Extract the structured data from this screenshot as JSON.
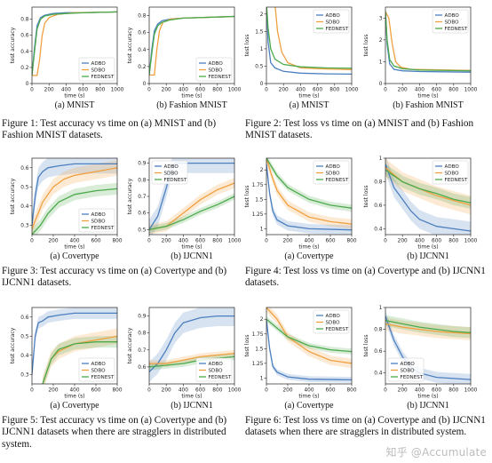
{
  "colors": {
    "ADBO": "#4c7fbf",
    "SDBO": "#f0a040",
    "FEDNEST": "#4caa4c"
  },
  "captions": [
    "Figure 1:  Test accuracy vs time on (a) MNIST and (b) Fashion MNIST datasets.",
    "Figure 2:  Test loss vs time on (a) MNIST and (b) Fashion MNIST datasets.",
    "Figure 3:  Test accuracy vs time on (a) Covertype and (b) IJCNN1 datasets.",
    "Figure 4:  Test loss vs time on (a) Covertype and (b) IJCNN1 datasets.",
    "Figure 5:  Test accuracy vs time on (a) Covertype and (b) IJCNN1 datasets when there are stragglers in distributed system.",
    "Figure 6:  Test loss vs time on (a) Covertype and (b) IJCNN1 datasets when there are stragglers in distributed system."
  ],
  "watermark": "知乎 @Accumulate",
  "chart_data": [
    {
      "type": "line",
      "subtitle": "(a)  MNIST",
      "xlabel": "time (s)",
      "ylabel": "test accuracy",
      "xlim": [
        0,
        1000
      ],
      "ylim": [
        0,
        0.95
      ],
      "xticks": [
        0,
        200,
        400,
        600,
        800,
        1000
      ],
      "yticks": [
        0.0,
        0.2,
        0.4,
        0.6,
        0.8
      ],
      "legend": "bottom-right",
      "series": [
        {
          "name": "ADBO",
          "x": [
            0,
            30,
            60,
            100,
            150,
            250,
            400,
            600,
            1000
          ],
          "y": [
            0.1,
            0.45,
            0.72,
            0.82,
            0.85,
            0.87,
            0.88,
            0.88,
            0.89
          ]
        },
        {
          "name": "SDBO",
          "x": [
            0,
            60,
            90,
            120,
            150,
            200,
            300,
            500,
            1000
          ],
          "y": [
            0.1,
            0.1,
            0.3,
            0.6,
            0.75,
            0.82,
            0.86,
            0.88,
            0.89
          ]
        },
        {
          "name": "FEDNEST",
          "x": [
            0,
            30,
            60,
            100,
            150,
            250,
            400,
            600,
            1000
          ],
          "y": [
            0.1,
            0.4,
            0.68,
            0.8,
            0.84,
            0.86,
            0.87,
            0.88,
            0.89
          ]
        }
      ]
    },
    {
      "type": "line",
      "subtitle": "(b)  Fashion MNIST",
      "xlabel": "time (s)",
      "ylabel": "test accuracy",
      "xlim": [
        0,
        1000
      ],
      "ylim": [
        0,
        0.9
      ],
      "xticks": [
        0,
        200,
        400,
        600,
        800,
        1000
      ],
      "yticks": [
        0.0,
        0.2,
        0.4,
        0.6,
        0.8
      ],
      "legend": "bottom-right",
      "series": [
        {
          "name": "ADBO",
          "x": [
            0,
            30,
            60,
            100,
            150,
            250,
            400,
            1000
          ],
          "y": [
            0.1,
            0.4,
            0.62,
            0.7,
            0.74,
            0.76,
            0.77,
            0.79
          ]
        },
        {
          "name": "SDBO",
          "x": [
            0,
            60,
            90,
            120,
            160,
            250,
            400,
            1000
          ],
          "y": [
            0.1,
            0.1,
            0.4,
            0.62,
            0.72,
            0.76,
            0.77,
            0.79
          ]
        },
        {
          "name": "FEDNEST",
          "x": [
            0,
            30,
            60,
            100,
            150,
            250,
            400,
            1000
          ],
          "y": [
            0.1,
            0.35,
            0.58,
            0.68,
            0.72,
            0.75,
            0.77,
            0.79
          ]
        }
      ]
    },
    {
      "type": "line",
      "subtitle": "(a)  MNIST",
      "xlabel": "time (s)",
      "ylabel": "test loss",
      "xlim": [
        0,
        1000
      ],
      "ylim": [
        0,
        2.2
      ],
      "xticks": [
        0,
        200,
        400,
        600,
        800,
        1000
      ],
      "yticks": [
        0.0,
        0.5,
        1.0,
        1.5,
        2.0
      ],
      "legend": "top-right",
      "series": [
        {
          "name": "ADBO",
          "x": [
            0,
            20,
            50,
            100,
            200,
            400,
            700,
            1000
          ],
          "y": [
            2.3,
            1.2,
            0.6,
            0.45,
            0.35,
            0.3,
            0.28,
            0.27
          ]
        },
        {
          "name": "SDBO",
          "x": [
            0,
            100,
            130,
            180,
            250,
            400,
            700,
            1000
          ],
          "y": [
            2.3,
            2.3,
            1.5,
            0.9,
            0.6,
            0.45,
            0.42,
            0.4
          ]
        },
        {
          "name": "FEDNEST",
          "x": [
            0,
            20,
            50,
            100,
            200,
            400,
            700,
            1000
          ],
          "y": [
            2.3,
            1.6,
            1.0,
            0.7,
            0.55,
            0.48,
            0.45,
            0.44
          ]
        }
      ]
    },
    {
      "type": "line",
      "subtitle": "(b)  Fashion MNIST",
      "xlabel": "time (s)",
      "ylabel": "test loss",
      "xlim": [
        0,
        1000
      ],
      "ylim": [
        0,
        3.5
      ],
      "xticks": [
        0,
        200,
        400,
        600,
        800,
        1000
      ],
      "yticks": [
        0,
        1,
        2,
        3
      ],
      "legend": "top-right",
      "series": [
        {
          "name": "ADBO",
          "x": [
            0,
            20,
            50,
            100,
            200,
            400,
            1000
          ],
          "y": [
            3.3,
            1.8,
            0.9,
            0.65,
            0.58,
            0.55,
            0.52
          ]
        },
        {
          "name": "SDBO",
          "x": [
            0,
            40,
            80,
            120,
            180,
            300,
            1000
          ],
          "y": [
            3.3,
            3.0,
            1.8,
            1.0,
            0.75,
            0.65,
            0.6
          ]
        },
        {
          "name": "FEDNEST",
          "x": [
            0,
            20,
            50,
            100,
            200,
            400,
            1000
          ],
          "y": [
            3.3,
            2.0,
            1.1,
            0.8,
            0.68,
            0.62,
            0.58
          ]
        }
      ]
    },
    {
      "type": "line",
      "subtitle": "(a)  Covertype",
      "xlabel": "time (s)",
      "ylabel": "test accuracy",
      "xlim": [
        0,
        800
      ],
      "ylim": [
        0.25,
        0.65
      ],
      "xticks": [
        0,
        200,
        400,
        600,
        800
      ],
      "yticks": [
        0.3,
        0.4,
        0.5,
        0.6
      ],
      "legend": "bottom-right",
      "series": [
        {
          "name": "ADBO",
          "x": [
            0,
            30,
            60,
            100,
            150,
            250,
            400,
            800
          ],
          "y": [
            0.3,
            0.45,
            0.55,
            0.58,
            0.6,
            0.61,
            0.62,
            0.62
          ],
          "spread": 0.05
        },
        {
          "name": "SDBO",
          "x": [
            0,
            50,
            100,
            200,
            300,
            400,
            600,
            800
          ],
          "y": [
            0.28,
            0.35,
            0.42,
            0.5,
            0.54,
            0.56,
            0.58,
            0.6
          ],
          "spread": 0.04
        },
        {
          "name": "FEDNEST",
          "x": [
            0,
            80,
            150,
            250,
            400,
            600,
            800
          ],
          "y": [
            0.25,
            0.3,
            0.36,
            0.42,
            0.46,
            0.48,
            0.49
          ],
          "spread": 0.03
        }
      ]
    },
    {
      "type": "line",
      "subtitle": "(b)  IJCNN1",
      "xlabel": "time (s)",
      "ylabel": "test accuracy",
      "xlim": [
        0,
        1000
      ],
      "ylim": [
        0.47,
        0.93
      ],
      "xticks": [
        0,
        200,
        400,
        600,
        800,
        1000
      ],
      "yticks": [
        0.5,
        0.6,
        0.7,
        0.8,
        0.9
      ],
      "legend": "top-left",
      "series": [
        {
          "name": "ADBO",
          "x": [
            0,
            100,
            200,
            250,
            300,
            400,
            1000
          ],
          "y": [
            0.5,
            0.58,
            0.75,
            0.85,
            0.9,
            0.9,
            0.9
          ],
          "spread": 0.06
        },
        {
          "name": "SDBO",
          "x": [
            0,
            200,
            400,
            600,
            800,
            1000
          ],
          "y": [
            0.5,
            0.52,
            0.6,
            0.68,
            0.74,
            0.78
          ],
          "spread": 0.03
        },
        {
          "name": "FEDNEST",
          "x": [
            0,
            200,
            400,
            600,
            800,
            1000
          ],
          "y": [
            0.5,
            0.52,
            0.56,
            0.61,
            0.65,
            0.7
          ],
          "spread": 0.02
        }
      ]
    },
    {
      "type": "line",
      "subtitle": "(a)  Covertype",
      "xlabel": "time (s)",
      "ylabel": "test loss",
      "xlim": [
        0,
        800
      ],
      "ylim": [
        0.9,
        2.2
      ],
      "xticks": [
        0,
        200,
        400,
        600,
        800
      ],
      "yticks": [
        1.0,
        1.25,
        1.5,
        1.75,
        2.0
      ],
      "legend": "top-right",
      "series": [
        {
          "name": "ADBO",
          "x": [
            0,
            30,
            60,
            100,
            200,
            400,
            800
          ],
          "y": [
            2.1,
            1.6,
            1.3,
            1.15,
            1.05,
            1.0,
            0.98
          ],
          "spread": 0.08
        },
        {
          "name": "SDBO",
          "x": [
            0,
            50,
            100,
            200,
            400,
            600,
            800
          ],
          "y": [
            2.2,
            1.9,
            1.65,
            1.4,
            1.2,
            1.12,
            1.08
          ],
          "spread": 0.08
        },
        {
          "name": "FEDNEST",
          "x": [
            0,
            100,
            200,
            400,
            600,
            800
          ],
          "y": [
            2.2,
            1.9,
            1.7,
            1.5,
            1.4,
            1.35
          ],
          "spread": 0.06
        }
      ]
    },
    {
      "type": "line",
      "subtitle": "(b)  IJCNN1",
      "xlabel": "time (s)",
      "ylabel": "test loss",
      "xlim": [
        0,
        1000
      ],
      "ylim": [
        0.35,
        1.0
      ],
      "xticks": [
        0,
        200,
        400,
        600,
        800,
        1000
      ],
      "yticks": [
        0.4,
        0.6,
        0.8,
        1.0
      ],
      "legend": "top-right",
      "series": [
        {
          "name": "ADBO",
          "x": [
            0,
            100,
            200,
            300,
            400,
            600,
            800,
            1000
          ],
          "y": [
            0.95,
            0.75,
            0.65,
            0.55,
            0.48,
            0.42,
            0.4,
            0.38
          ],
          "spread": 0.08
        },
        {
          "name": "SDBO",
          "x": [
            0,
            200,
            400,
            600,
            800,
            1000
          ],
          "y": [
            0.92,
            0.8,
            0.74,
            0.68,
            0.64,
            0.6
          ],
          "spread": 0.08
        },
        {
          "name": "FEDNEST",
          "x": [
            0,
            200,
            400,
            600,
            800,
            1000
          ],
          "y": [
            0.9,
            0.8,
            0.74,
            0.7,
            0.65,
            0.62
          ],
          "spread": 0.05
        }
      ]
    },
    {
      "type": "line",
      "subtitle": "(a)  Covertype",
      "xlabel": "time (s)",
      "ylabel": "test accuracy",
      "xlim": [
        0,
        800
      ],
      "ylim": [
        0.25,
        0.65
      ],
      "xticks": [
        0,
        200,
        400,
        600,
        800
      ],
      "yticks": [
        0.3,
        0.4,
        0.5,
        0.6
      ],
      "legend": "bottom-right",
      "series": [
        {
          "name": "ADBO",
          "x": [
            0,
            30,
            60,
            100,
            150,
            250,
            400,
            800
          ],
          "y": [
            0.3,
            0.5,
            0.57,
            0.58,
            0.6,
            0.61,
            0.62,
            0.62
          ],
          "spread": 0.03
        },
        {
          "name": "SDBO",
          "x": [
            100,
            180,
            250,
            400,
            600,
            800
          ],
          "y": [
            0.25,
            0.38,
            0.42,
            0.46,
            0.48,
            0.5
          ],
          "spread": 0.04
        },
        {
          "name": "FEDNEST",
          "x": [
            100,
            180,
            250,
            400,
            600,
            800
          ],
          "y": [
            0.25,
            0.38,
            0.43,
            0.46,
            0.47,
            0.47
          ],
          "spread": 0.03
        }
      ]
    },
    {
      "type": "line",
      "subtitle": "(b)  IJCNN1",
      "xlabel": "time (s)",
      "ylabel": "test accuracy",
      "xlim": [
        0,
        1000
      ],
      "ylim": [
        0.5,
        0.95
      ],
      "xticks": [
        0,
        200,
        400,
        600,
        800,
        1000
      ],
      "yticks": [
        0.6,
        0.7,
        0.8,
        0.9
      ],
      "legend": "bottom-right",
      "series": [
        {
          "name": "ADBO",
          "x": [
            0,
            100,
            200,
            300,
            400,
            600,
            800,
            1000
          ],
          "y": [
            0.57,
            0.62,
            0.7,
            0.8,
            0.86,
            0.89,
            0.9,
            0.9
          ],
          "spread": 0.06
        },
        {
          "name": "SDBO",
          "x": [
            0,
            200,
            400,
            600,
            800,
            1000
          ],
          "y": [
            0.62,
            0.62,
            0.64,
            0.66,
            0.67,
            0.68
          ],
          "spread": 0.02
        },
        {
          "name": "FEDNEST",
          "x": [
            0,
            200,
            400,
            600,
            800,
            1000
          ],
          "y": [
            0.6,
            0.61,
            0.62,
            0.64,
            0.65,
            0.66
          ],
          "spread": 0.02
        }
      ]
    },
    {
      "type": "line",
      "subtitle": "(a)  Covertype",
      "xlabel": "time (s)",
      "ylabel": "test loss",
      "xlim": [
        0,
        800
      ],
      "ylim": [
        0.9,
        2.2
      ],
      "xticks": [
        0,
        200,
        400,
        600,
        800
      ],
      "yticks": [
        1.0,
        1.25,
        1.5,
        1.75,
        2.0
      ],
      "legend": "top-right",
      "series": [
        {
          "name": "ADBO",
          "x": [
            0,
            30,
            60,
            100,
            200,
            400,
            800
          ],
          "y": [
            2.0,
            1.5,
            1.2,
            1.1,
            1.02,
            0.98,
            0.97
          ],
          "spread": 0.05
        },
        {
          "name": "SDBO",
          "x": [
            0,
            100,
            200,
            400,
            600,
            800
          ],
          "y": [
            2.2,
            2.0,
            1.7,
            1.45,
            1.3,
            1.25
          ],
          "spread": 0.08
        },
        {
          "name": "FEDNEST",
          "x": [
            0,
            100,
            200,
            400,
            600,
            800
          ],
          "y": [
            2.0,
            1.85,
            1.7,
            1.55,
            1.48,
            1.45
          ],
          "spread": 0.05
        }
      ]
    },
    {
      "type": "line",
      "subtitle": "(b)  IJCNN1",
      "xlabel": "time (s)",
      "ylabel": "test loss",
      "xlim": [
        0,
        1000
      ],
      "ylim": [
        0.3,
        1.0
      ],
      "xticks": [
        0,
        200,
        400,
        600,
        800,
        1000
      ],
      "yticks": [
        0.4,
        0.6,
        0.8,
        1.0
      ],
      "legend": "bottom-left",
      "series": [
        {
          "name": "ADBO",
          "x": [
            0,
            100,
            200,
            300,
            400,
            600,
            800,
            1000
          ],
          "y": [
            0.92,
            0.7,
            0.55,
            0.45,
            0.4,
            0.36,
            0.35,
            0.34
          ],
          "spread": 0.05
        },
        {
          "name": "SDBO",
          "x": [
            0,
            200,
            400,
            600,
            800,
            1000
          ],
          "y": [
            0.85,
            0.82,
            0.8,
            0.78,
            0.77,
            0.76
          ],
          "spread": 0.06
        },
        {
          "name": "FEDNEST",
          "x": [
            0,
            200,
            400,
            600,
            800,
            1000
          ],
          "y": [
            0.88,
            0.85,
            0.82,
            0.8,
            0.78,
            0.77
          ],
          "spread": 0.05
        }
      ]
    }
  ]
}
